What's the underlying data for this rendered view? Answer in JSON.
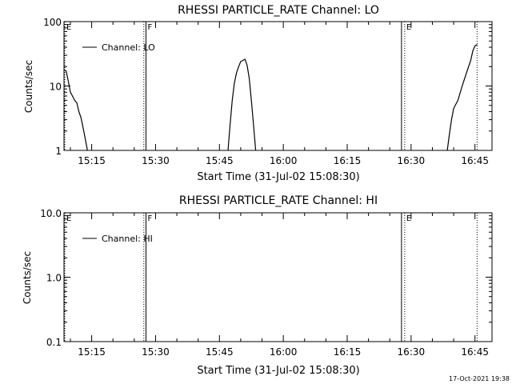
{
  "footer": {
    "timestamp": "17-Oct-2021 19:38"
  },
  "chart_data": [
    {
      "type": "line",
      "title": "RHESSI PARTICLE_RATE Channel: LO",
      "xlabel": "Start Time (31-Jul-02 15:08:30)",
      "ylabel": "Counts/sec",
      "yscale": "log",
      "ylim": [
        1,
        100
      ],
      "yticks": [
        1,
        10,
        100
      ],
      "ytick_labels": [
        "1",
        "10",
        "100"
      ],
      "xlim": [
        "15:08:30",
        "16:49:00"
      ],
      "xticks": [
        "15:15",
        "15:30",
        "15:45",
        "16:00",
        "16:15",
        "16:30",
        "16:45"
      ],
      "legend": {
        "position": "top-left",
        "entries": [
          "Channel: LO"
        ]
      },
      "markers": [
        {
          "time": "15:08:30",
          "label": "E",
          "style": "dotted"
        },
        {
          "time": "15:27:15",
          "label": "",
          "style": "dotted"
        },
        {
          "time": "15:27:45",
          "label": "F",
          "style": "solid"
        },
        {
          "time": "16:27:45",
          "label": "",
          "style": "solid"
        },
        {
          "time": "16:28:30",
          "label": "E",
          "style": "dotted"
        },
        {
          "time": "16:45:30",
          "label": "",
          "style": "dotted"
        }
      ],
      "series": [
        {
          "name": "Channel: LO",
          "segments": [
            [
              [
                "15:08:30",
                18
              ],
              [
                "15:09:00",
                17
              ],
              [
                "15:09:30",
                12
              ],
              [
                "15:10:00",
                8
              ],
              [
                "15:10:30",
                7
              ],
              [
                "15:11:00",
                6
              ],
              [
                "15:11:30",
                5.5
              ],
              [
                "15:12:00",
                4
              ],
              [
                "15:12:30",
                3.2
              ],
              [
                "15:13:00",
                2.2
              ],
              [
                "15:13:30",
                1.5
              ],
              [
                "15:14:00",
                1.0
              ]
            ],
            [
              [
                "15:47:00",
                1.0
              ],
              [
                "15:47:30",
                2.5
              ],
              [
                "15:48:00",
                6
              ],
              [
                "15:48:30",
                11
              ],
              [
                "15:49:00",
                16
              ],
              [
                "15:49:30",
                20
              ],
              [
                "15:50:00",
                24
              ],
              [
                "15:50:30",
                25
              ],
              [
                "15:51:00",
                26
              ],
              [
                "15:51:30",
                21
              ],
              [
                "15:52:00",
                13
              ],
              [
                "15:52:30",
                6
              ],
              [
                "15:53:00",
                2.5
              ],
              [
                "15:53:30",
                1.0
              ]
            ],
            [
              [
                "16:38:30",
                1.0
              ],
              [
                "16:39:00",
                1.8
              ],
              [
                "16:39:30",
                3
              ],
              [
                "16:40:00",
                4.5
              ],
              [
                "16:41:00",
                6
              ],
              [
                "16:42:00",
                10
              ],
              [
                "16:43:00",
                16
              ],
              [
                "16:44:00",
                25
              ],
              [
                "16:44:30",
                35
              ],
              [
                "16:45:00",
                42
              ],
              [
                "16:45:30",
                44
              ]
            ]
          ]
        }
      ]
    },
    {
      "type": "line",
      "title": "RHESSI PARTICLE_RATE Channel: HI",
      "xlabel": "Start Time (31-Jul-02 15:08:30)",
      "ylabel": "Counts/sec",
      "yscale": "log",
      "ylim": [
        0.1,
        10
      ],
      "yticks": [
        0.1,
        1,
        10
      ],
      "ytick_labels": [
        "0.1",
        "1.0",
        "10.0"
      ],
      "xlim": [
        "15:08:30",
        "16:49:00"
      ],
      "xticks": [
        "15:15",
        "15:30",
        "15:45",
        "16:00",
        "16:15",
        "16:30",
        "16:45"
      ],
      "legend": {
        "position": "top-left",
        "entries": [
          "Channel: HI"
        ]
      },
      "markers": [
        {
          "time": "15:08:30",
          "label": "E",
          "style": "dotted"
        },
        {
          "time": "15:27:15",
          "label": "",
          "style": "dotted"
        },
        {
          "time": "15:27:45",
          "label": "F",
          "style": "solid"
        },
        {
          "time": "16:27:45",
          "label": "",
          "style": "solid"
        },
        {
          "time": "16:28:30",
          "label": "E",
          "style": "dotted"
        },
        {
          "time": "16:45:30",
          "label": "",
          "style": "dotted"
        }
      ],
      "series": [
        {
          "name": "Channel: HI",
          "segments": []
        }
      ]
    }
  ]
}
